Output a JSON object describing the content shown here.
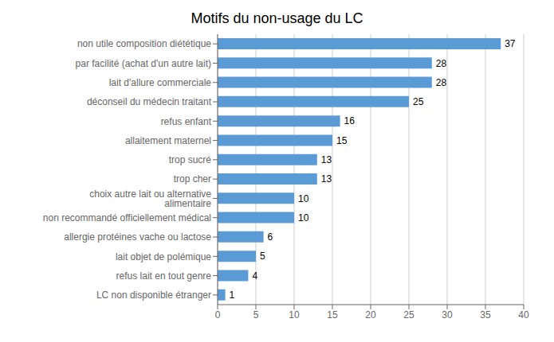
{
  "chart_data": {
    "type": "bar",
    "title": "Motifs du non-usage du LC",
    "categories": [
      "LC non disponible étranger",
      "refus lait en tout genre",
      "lait objet de polémique",
      "allergie protéines vache ou lactose",
      "non recommandé officiellement médical",
      "choix autre lait ou alternative alimentaire",
      "trop cher",
      "trop sucré",
      "allaitement maternel",
      "refus enfant",
      "déconseil du médecin traitant",
      "lait d'allure commerciale",
      "par facilité (achat d'un autre lait)",
      "non utile composition diététique"
    ],
    "values": [
      1,
      4,
      5,
      6,
      10,
      10,
      13,
      13,
      15,
      16,
      25,
      28,
      28,
      37
    ],
    "color": "#5B9BD5",
    "xlim": [
      0,
      40
    ],
    "xticks": [
      0,
      5,
      10,
      15,
      20,
      25,
      30,
      35,
      40
    ],
    "grid": true,
    "orientation": "horizontal",
    "data_labels": true
  }
}
